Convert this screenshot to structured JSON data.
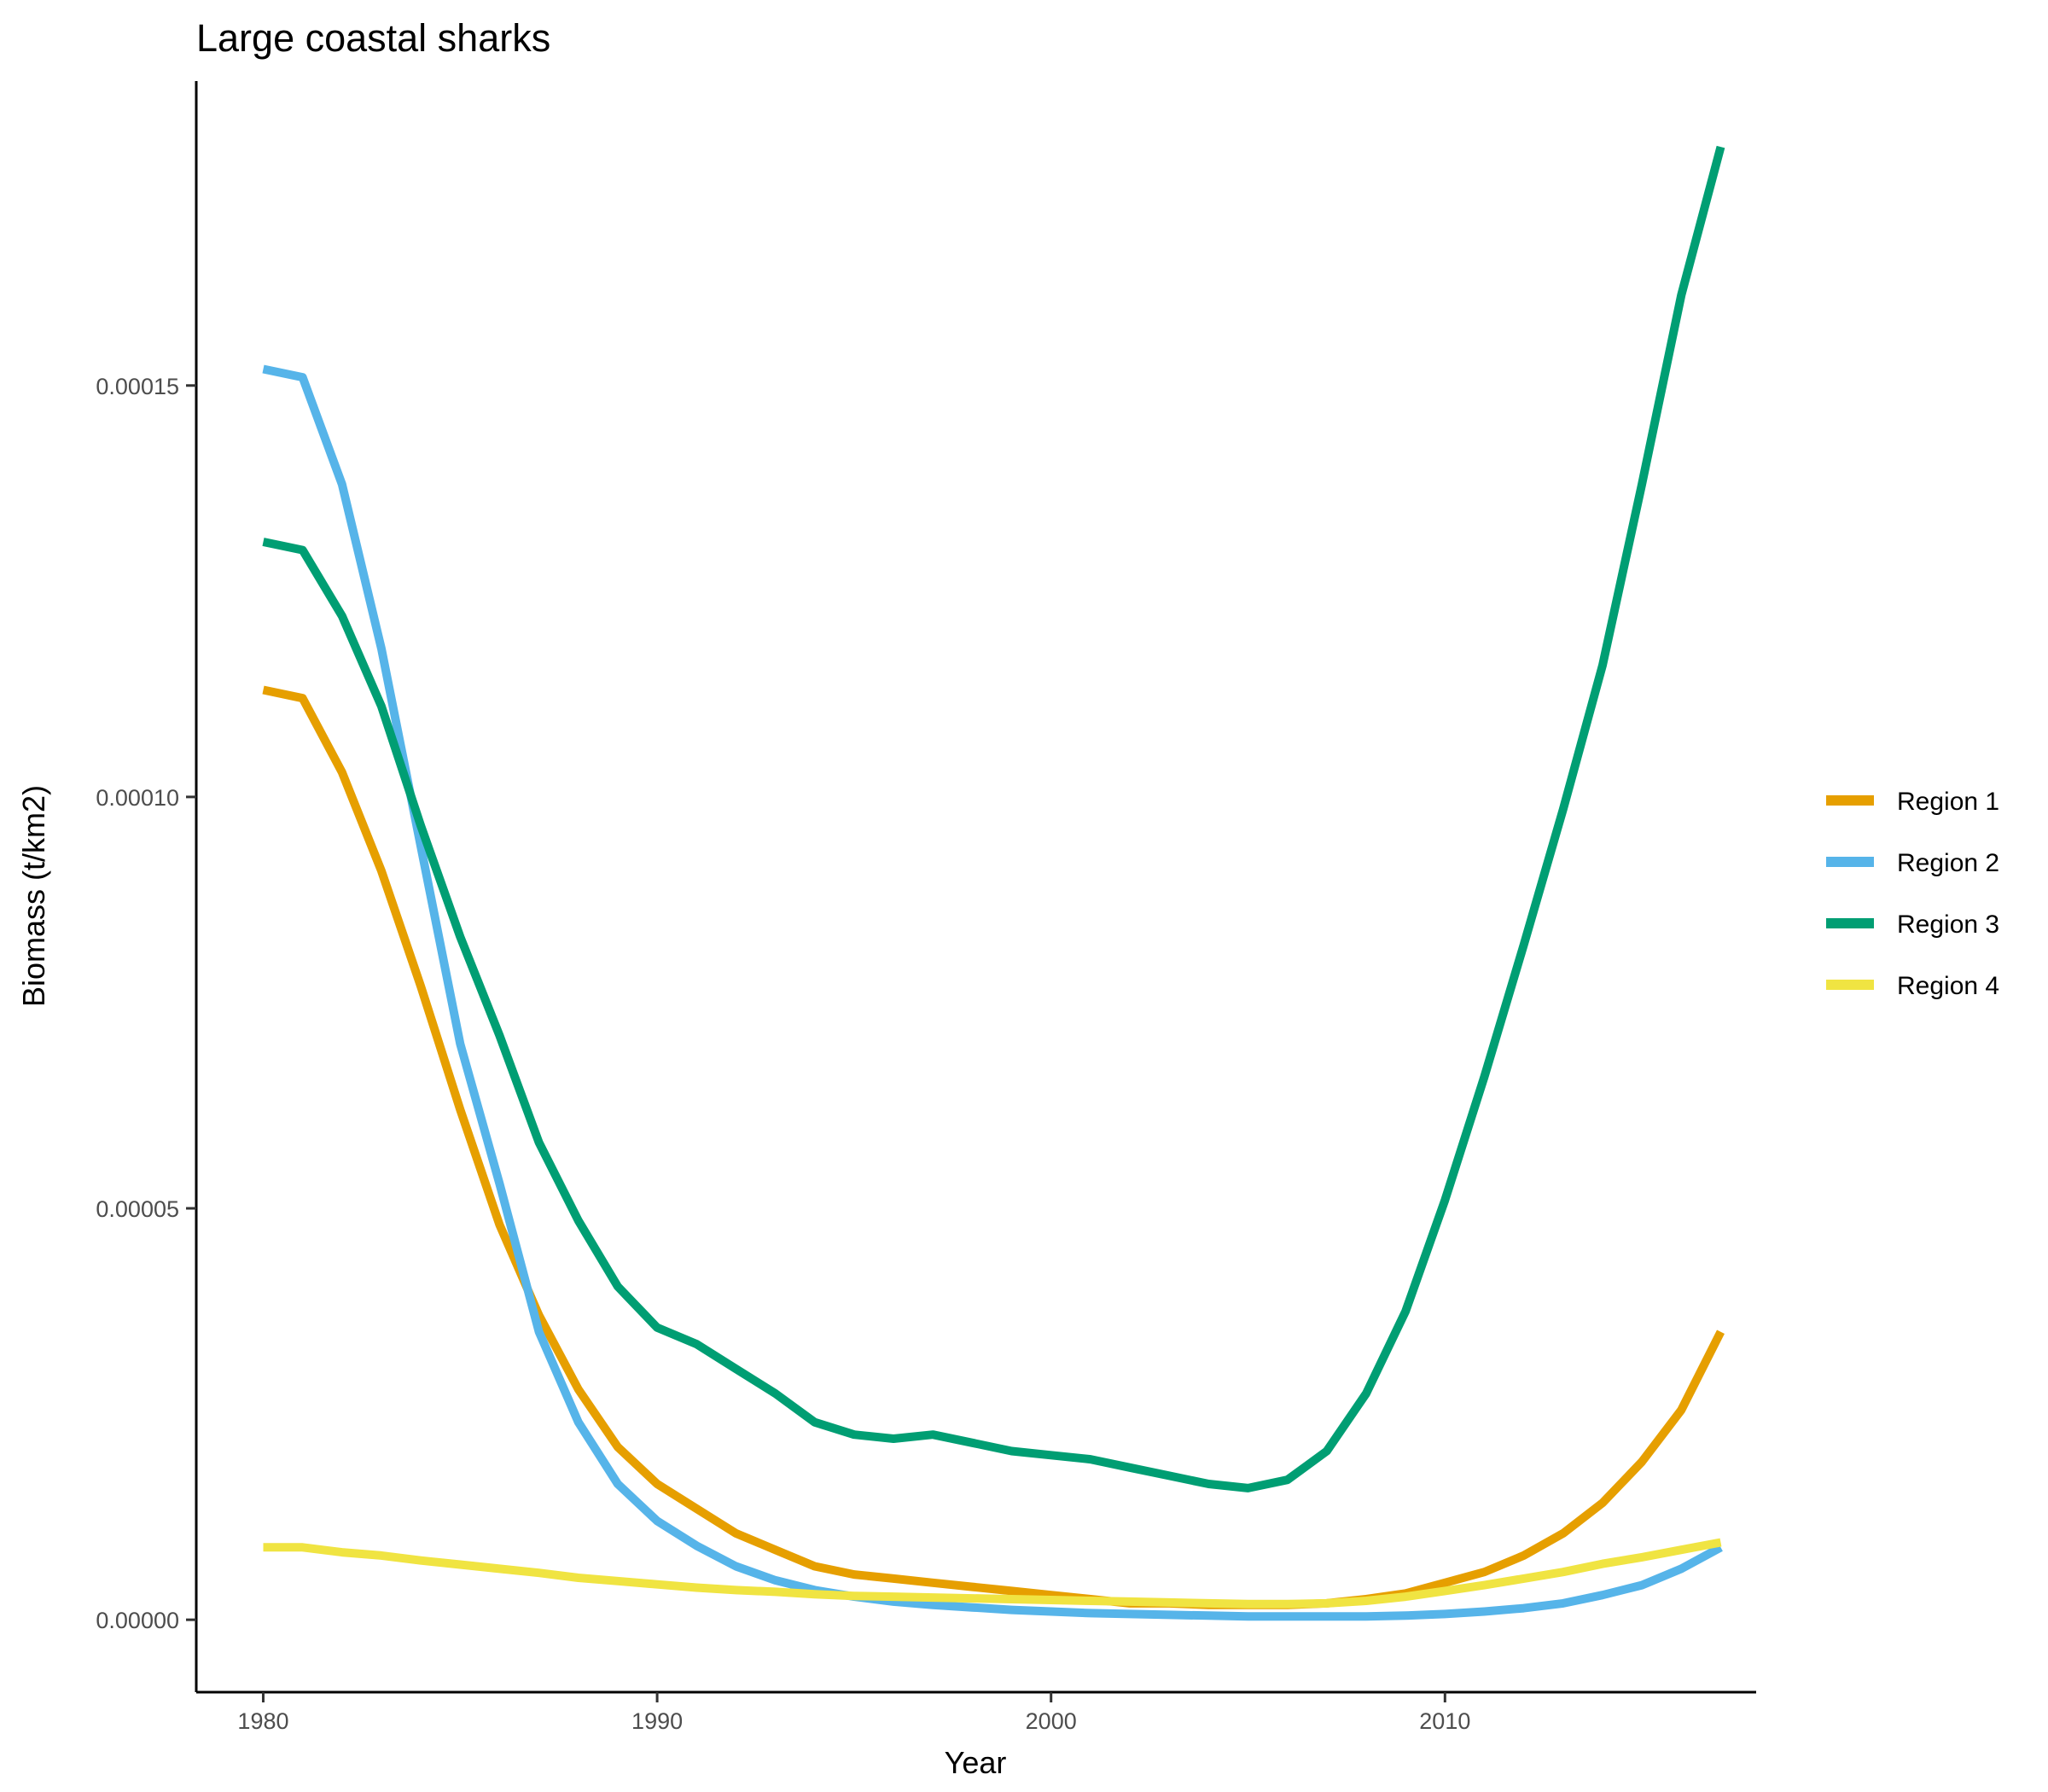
{
  "chart_data": {
    "type": "line",
    "title": "Large coastal sharks",
    "xlabel": "Year",
    "ylabel": "Biomass (t/km2)",
    "xlim": [
      1978.3,
      2017.9
    ],
    "ylim": [
      -8.8e-06,
      0.000187
    ],
    "x_ticks": [
      1980,
      1990,
      2000,
      2010
    ],
    "x_tick_labels": [
      "1980",
      "1990",
      "2000",
      "2010"
    ],
    "y_ticks": [
      0,
      5e-05,
      0.0001,
      0.00015
    ],
    "y_tick_labels": [
      "0.00000",
      "0.00005",
      "0.00010",
      "0.00015"
    ],
    "grid": false,
    "legend_position": "right",
    "x": [
      1980,
      1981,
      1982,
      1983,
      1984,
      1985,
      1986,
      1987,
      1988,
      1989,
      1990,
      1991,
      1992,
      1993,
      1994,
      1995,
      1996,
      1997,
      1998,
      1999,
      2000,
      2001,
      2002,
      2003,
      2004,
      2005,
      2006,
      2007,
      2008,
      2009,
      2010,
      2011,
      2012,
      2013,
      2014,
      2015,
      2016,
      2017
    ],
    "series": [
      {
        "name": "Region 1",
        "color": "#E69F00",
        "values": [
          0.000113,
          0.000112,
          0.000103,
          9.1e-05,
          7.7e-05,
          6.2e-05,
          4.8e-05,
          3.7e-05,
          2.8e-05,
          2.1e-05,
          1.65e-05,
          1.35e-05,
          1.05e-05,
          8.5e-06,
          6.5e-06,
          5.5e-06,
          5e-06,
          4.5e-06,
          4e-06,
          3.5e-06,
          3e-06,
          2.5e-06,
          2e-06,
          2e-06,
          1.8e-06,
          1.8e-06,
          1.8e-06,
          2e-06,
          2.5e-06,
          3.2e-06,
          4.5e-06,
          5.8e-06,
          7.8e-06,
          1.05e-05,
          1.42e-05,
          1.92e-05,
          2.55e-05,
          3.5e-05
        ]
      },
      {
        "name": "Region 2",
        "color": "#56B4E9",
        "values": [
          0.000152,
          0.000151,
          0.000138,
          0.000118,
          9.4e-05,
          7e-05,
          5.3e-05,
          3.5e-05,
          2.4e-05,
          1.65e-05,
          1.2e-05,
          9e-06,
          6.5e-06,
          4.8e-06,
          3.6e-06,
          2.8e-06,
          2.2e-06,
          1.8e-06,
          1.5e-06,
          1.2e-06,
          1e-06,
          8e-07,
          7e-07,
          6e-07,
          5e-07,
          4e-07,
          4e-07,
          4e-07,
          4e-07,
          5e-07,
          7e-07,
          1e-06,
          1.4e-06,
          2e-06,
          3e-06,
          4.2e-06,
          6.2e-06,
          8.8e-06
        ]
      },
      {
        "name": "Region 3",
        "color": "#009E73",
        "values": [
          0.000131,
          0.00013,
          0.000122,
          0.000111,
          9.65e-05,
          8.3e-05,
          7.1e-05,
          5.8e-05,
          4.85e-05,
          4.05e-05,
          3.55e-05,
          3.35e-05,
          3.05e-05,
          2.75e-05,
          2.4e-05,
          2.25e-05,
          2.2e-05,
          2.25e-05,
          2.15e-05,
          2.05e-05,
          2e-05,
          1.95e-05,
          1.85e-05,
          1.75e-05,
          1.65e-05,
          1.6e-05,
          1.7e-05,
          2.05e-05,
          2.75e-05,
          3.75e-05,
          5.1e-05,
          6.6e-05,
          8.2e-05,
          9.85e-05,
          0.000116,
          0.000138,
          0.000161,
          0.000179
        ]
      },
      {
        "name": "Region 4",
        "color": "#F0E442",
        "values": [
          8.8e-06,
          8.8e-06,
          8.2e-06,
          7.8e-06,
          7.2e-06,
          6.7e-06,
          6.2e-06,
          5.7e-06,
          5.1e-06,
          4.7e-06,
          4.3e-06,
          3.9e-06,
          3.6e-06,
          3.4e-06,
          3.1e-06,
          2.9e-06,
          2.8e-06,
          2.7e-06,
          2.6e-06,
          2.5e-06,
          2.4e-06,
          2.3e-06,
          2.2e-06,
          2.1e-06,
          2e-06,
          1.9e-06,
          1.9e-06,
          2e-06,
          2.3e-06,
          2.8e-06,
          3.5e-06,
          4.2e-06,
          5e-06,
          5.8e-06,
          6.8e-06,
          7.6e-06,
          8.5e-06,
          9.4e-06
        ]
      }
    ]
  }
}
